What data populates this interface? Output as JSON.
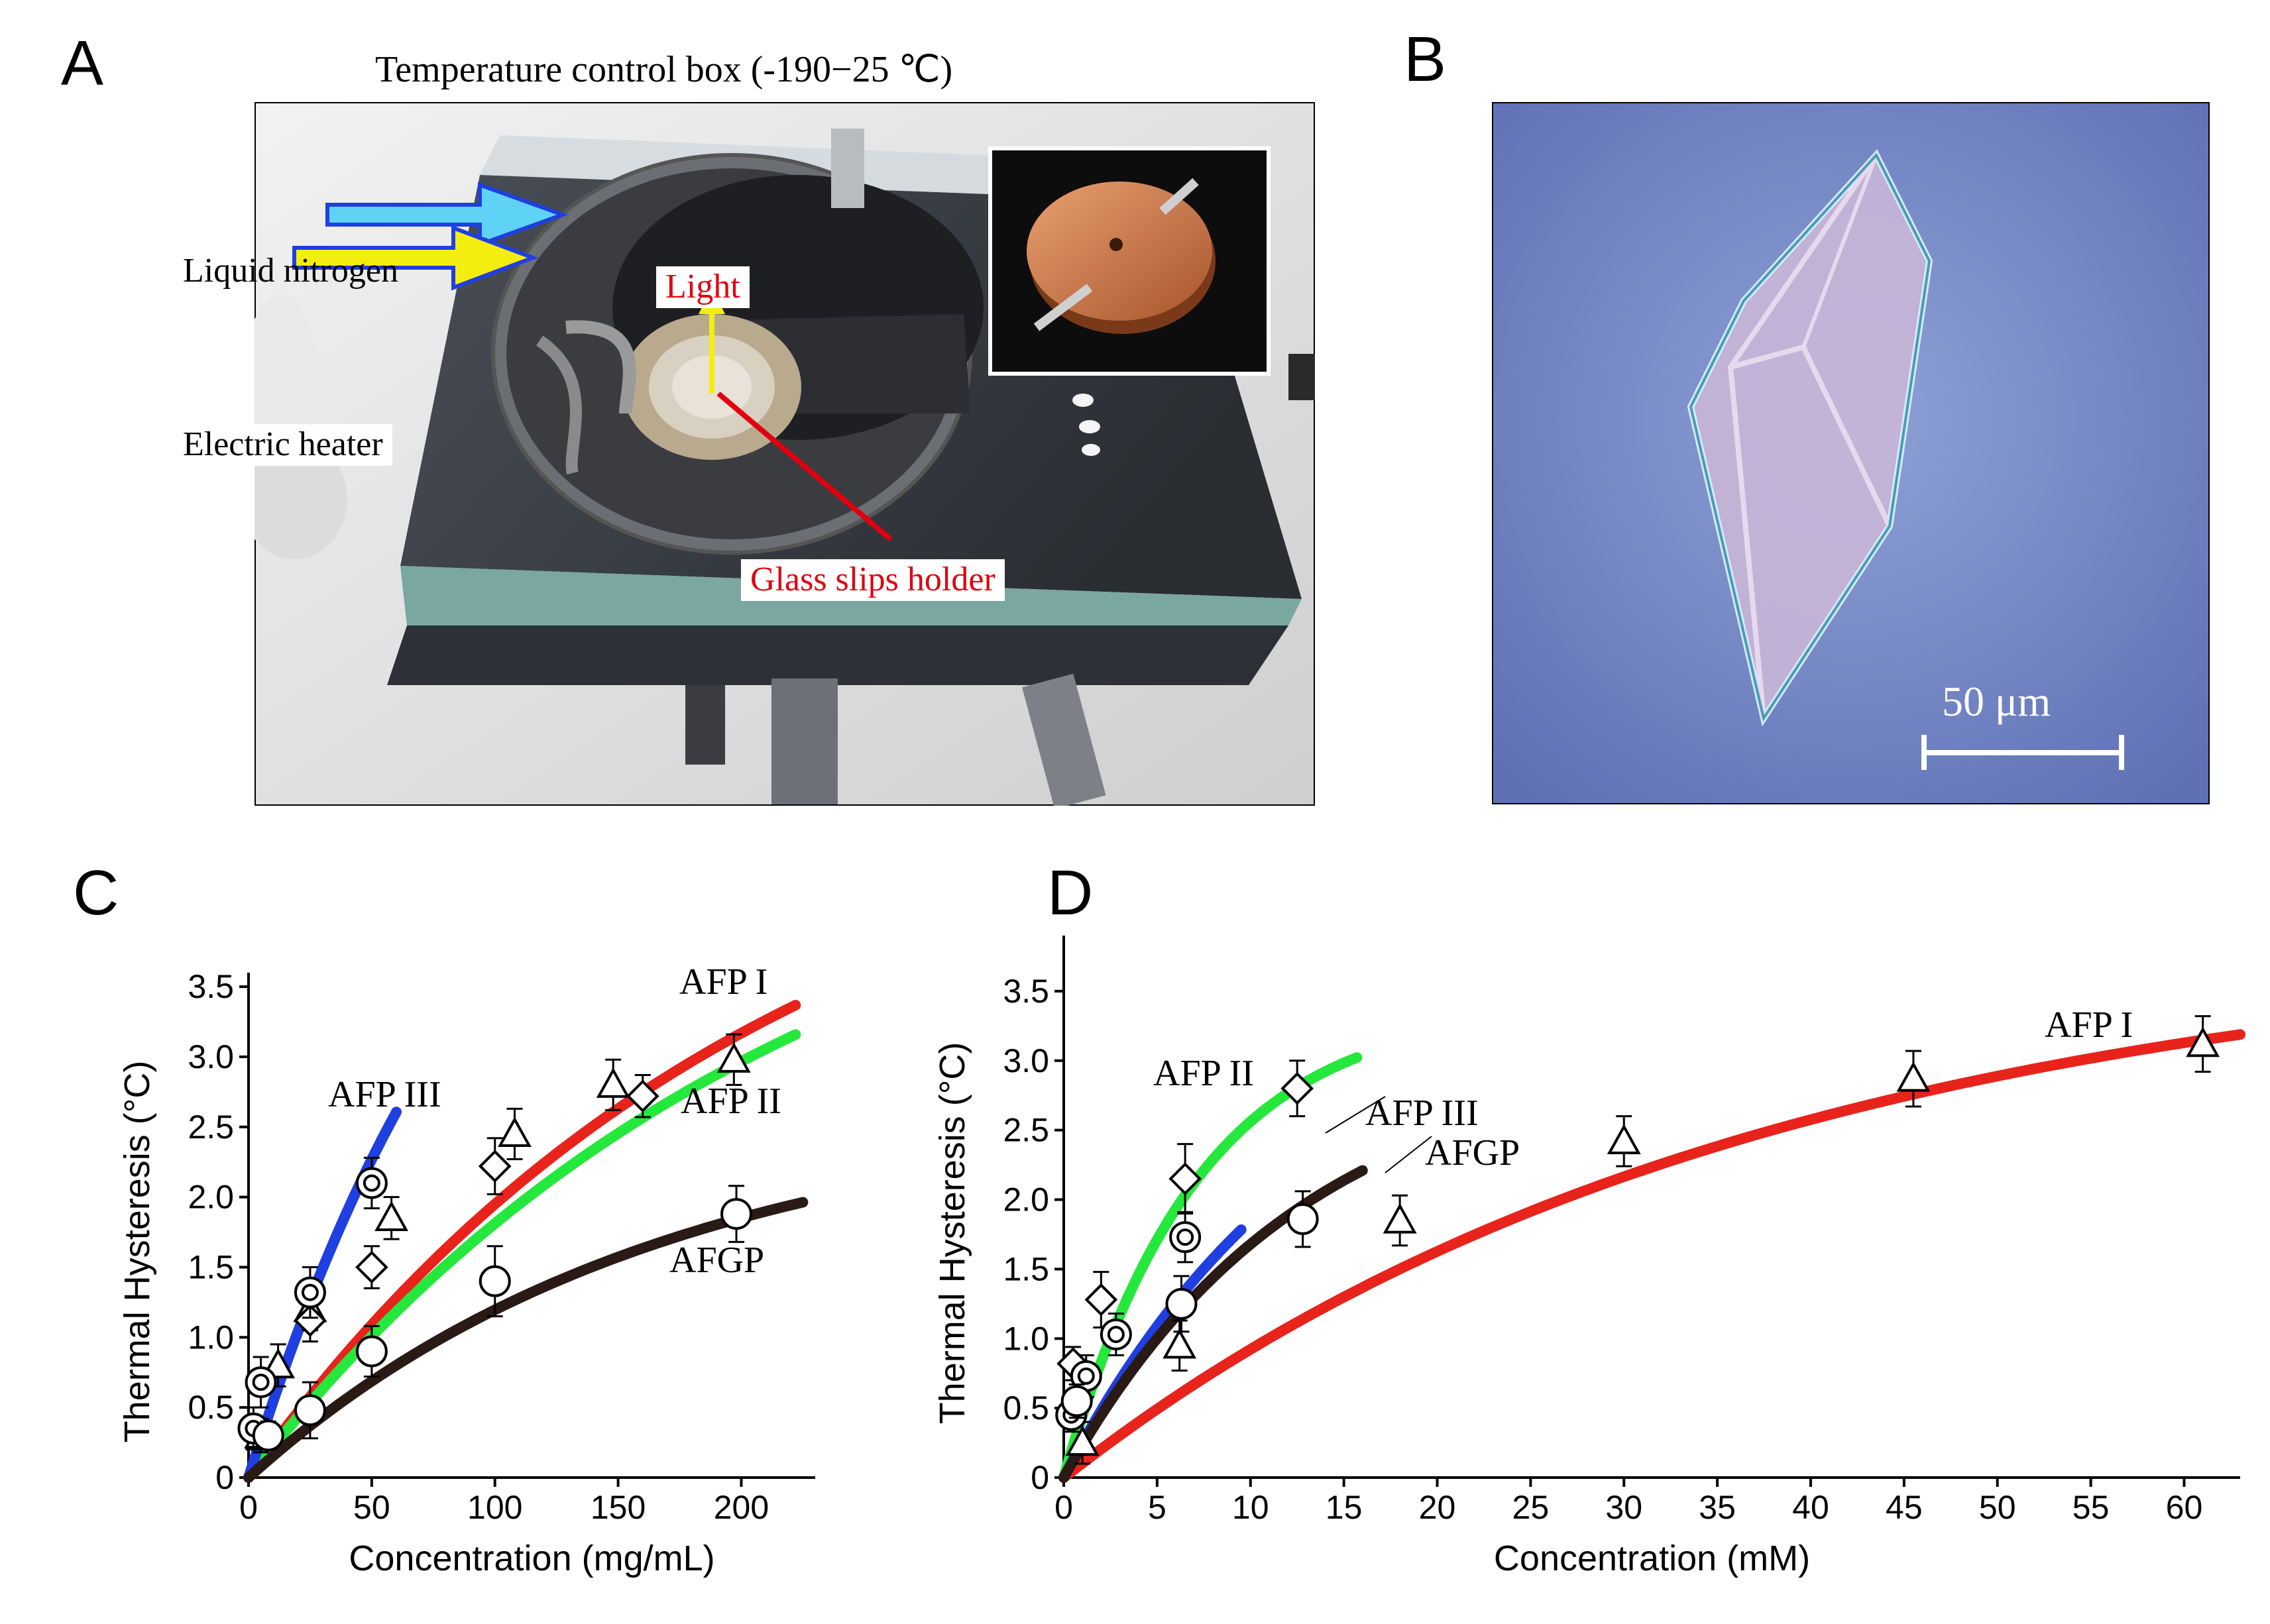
{
  "panels": {
    "a": "A",
    "b": "B",
    "c": "C",
    "d": "D"
  },
  "panelA": {
    "title": "Temperature control box (-190−25 ℃)",
    "label_nitrogen": "Liquid nitrogen",
    "label_heater": "Electric heater",
    "label_light": "Light",
    "label_holder": "Glass slips holder"
  },
  "panelB": {
    "scalebar": "50 μm"
  },
  "colors": {
    "afp1": "#e8231c",
    "afp2": "#25e83c",
    "afp3": "#1f3fe0",
    "afgp": "#2a1a16",
    "nitrogen_arrow": "#5fd3f5",
    "heater_arrow": "#f4ee10",
    "label_red": "#e0000f"
  },
  "chart_data": [
    {
      "type": "scatter",
      "panel": "C",
      "xlabel": "Concentration (mg/mL)",
      "ylabel": "Thermal Hysteresis (°C)",
      "xlim": [
        0,
        230
      ],
      "ylim": [
        0,
        3.6
      ],
      "xticks": [
        0,
        50,
        100,
        150,
        200
      ],
      "yticks": [
        0,
        0.5,
        1.0,
        1.5,
        2.0,
        2.5,
        3.0,
        3.5
      ],
      "xtick_labels": [
        "0",
        "50",
        "100",
        "150",
        "200"
      ],
      "ytick_labels": [
        "0",
        "0.5",
        "1.0",
        "1.5",
        "2.0",
        "2.5",
        "3.0",
        "3.5"
      ],
      "series": [
        {
          "name": "AFP I",
          "marker": "triangle",
          "color": "#e8231c",
          "x": [
            5,
            12,
            25,
            58,
            108,
            148,
            197
          ],
          "y": [
            0.3,
            0.8,
            1.2,
            1.85,
            2.45,
            2.8,
            2.98
          ],
          "err": [
            0.12,
            0.15,
            0.15,
            0.15,
            0.18,
            0.18,
            0.18
          ],
          "fit": {
            "a": 5.2,
            "k": 0.0047,
            "xmax": 222
          }
        },
        {
          "name": "AFP II",
          "marker": "diamond",
          "color": "#25e83c",
          "x": [
            25,
            50,
            100,
            160
          ],
          "y": [
            1.12,
            1.5,
            2.22,
            2.72
          ],
          "err": [
            0.15,
            0.15,
            0.2,
            0.15
          ],
          "fit": {
            "a": 5.0,
            "k": 0.0045,
            "xmax": 222
          }
        },
        {
          "name": "AFP III",
          "marker": "circle-dot",
          "color": "#1f3fe0",
          "x": [
            2,
            5,
            25,
            50
          ],
          "y": [
            0.35,
            0.68,
            1.32,
            2.1
          ],
          "err": [
            0.15,
            0.18,
            0.18,
            0.18
          ],
          "fit": {
            "a": 6.0,
            "k": 0.0095,
            "xmax": 60
          }
        },
        {
          "name": "AFGP",
          "marker": "circle",
          "color": "#2a1a16",
          "x": [
            8,
            25,
            50,
            100,
            198
          ],
          "y": [
            0.3,
            0.48,
            0.9,
            1.4,
            1.88
          ],
          "err": [
            0.1,
            0.2,
            0.18,
            0.25,
            0.2
          ],
          "fit": {
            "a": 2.65,
            "k": 0.006,
            "xmax": 225
          }
        }
      ],
      "annotations": [
        "AFP I",
        "AFP III",
        "AFP II",
        "AFGP"
      ]
    },
    {
      "type": "scatter",
      "panel": "D",
      "xlabel": "Concentration (mM)",
      "ylabel": "Thermal Hysteresis (°C)",
      "xlim": [
        0,
        63
      ],
      "ylim": [
        0,
        3.9
      ],
      "xticks": [
        0,
        5,
        10,
        15,
        20,
        25,
        30,
        35,
        40,
        45,
        50,
        55,
        60
      ],
      "yticks": [
        0,
        0.5,
        1.0,
        1.5,
        2.0,
        2.5,
        3.0,
        3.5
      ],
      "xtick_labels": [
        "0",
        "5",
        "10",
        "15",
        "20",
        "25",
        "30",
        "35",
        "40",
        "45",
        "50",
        "55",
        "60"
      ],
      "ytick_labels": [
        "0",
        "0.5",
        "1.0",
        "1.5",
        "2.0",
        "2.5",
        "3.0",
        "3.5"
      ],
      "series": [
        {
          "name": "AFP I",
          "marker": "triangle",
          "color": "#e8231c",
          "x": [
            1.0,
            6.2,
            18.0,
            30.0,
            45.5,
            61.0
          ],
          "y": [
            0.25,
            0.95,
            1.85,
            2.42,
            2.87,
            3.12
          ],
          "err": [
            0.15,
            0.18,
            0.18,
            0.18,
            0.2,
            0.2
          ],
          "fit": {
            "a": 3.9,
            "k": 0.027,
            "xmax": 63
          }
        },
        {
          "name": "AFP II",
          "marker": "diamond",
          "color": "#25e83c",
          "x": [
            0.5,
            2.0,
            6.5,
            12.5
          ],
          "y": [
            0.82,
            1.28,
            2.15,
            2.8
          ],
          "err": [
            0.12,
            0.2,
            0.25,
            0.2
          ],
          "fit": {
            "a": 3.4,
            "k": 0.14,
            "xmax": 15.7
          }
        },
        {
          "name": "AFP III",
          "marker": "circle-dot",
          "color": "#1f3fe0",
          "x": [
            0.4,
            1.2,
            2.8,
            6.5
          ],
          "y": [
            0.45,
            0.73,
            1.03,
            1.73
          ],
          "err": [
            0.12,
            0.15,
            0.15,
            0.18
          ],
          "fit": {
            "a": 3.6,
            "k": 0.072,
            "xmax": 9.5
          }
        },
        {
          "name": "AFGP",
          "marker": "circle",
          "color": "#2a1a16",
          "x": [
            0.7,
            6.3,
            12.8
          ],
          "y": [
            0.55,
            1.25,
            1.86
          ],
          "err": [
            0.12,
            0.2,
            0.2
          ],
          "fit": {
            "a": 3.1,
            "k": 0.078,
            "xmax": 16
          }
        }
      ],
      "annotations": [
        "AFP I",
        "AFP II",
        "AFP III",
        "AFGP"
      ]
    }
  ]
}
